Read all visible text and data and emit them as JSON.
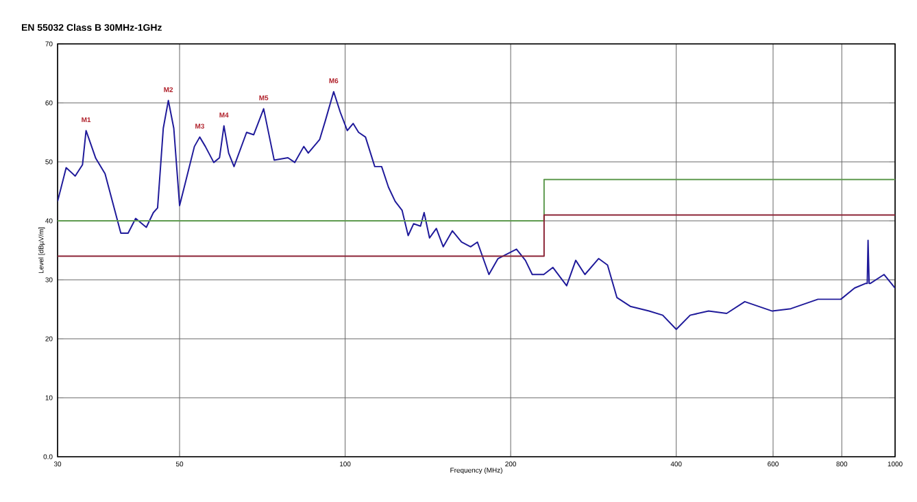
{
  "chart_data": {
    "type": "line",
    "title": "EN 55032 Class B 30MHz-1GHz",
    "xlabel": "Frequency (MHz)",
    "ylabel": "Level [dBµV/m]",
    "log": "x",
    "grid": true,
    "xlim": [
      30,
      1000
    ],
    "ylim": [
      0,
      70
    ],
    "xticks": [
      30,
      50,
      100,
      200,
      400,
      600,
      800,
      1000
    ],
    "yticks": [
      {
        "value": 0,
        "label": "0.0"
      },
      10,
      20,
      30,
      40,
      50,
      60,
      70
    ],
    "series": [
      {
        "color": "#1f1a9a",
        "x": [
          30,
          31.1,
          32.3,
          33.3,
          33.8,
          35.2,
          36.6,
          39.1,
          40.3,
          41.6,
          43.5,
          44.8,
          45.6,
          46.7,
          47.7,
          48.8,
          50,
          51.2,
          53.2,
          54.4,
          55.7,
          57.7,
          59.1,
          60.2,
          61.4,
          62.8,
          66.2,
          68.2,
          71.1,
          74.3,
          78.7,
          81,
          84.1,
          85.7,
          89.9,
          92,
          95.3,
          98,
          100.9,
          103.4,
          105.8,
          108.9,
          113.2,
          116.5,
          119.9,
          123.3,
          126.9,
          130.2,
          133.2,
          137.1,
          139.2,
          142.4,
          146.5,
          150.8,
          156.7,
          162.8,
          169.1,
          174,
          182.6,
          189.7,
          204.9,
          212.7,
          218.9,
          229.7,
          238.6,
          252.8,
          262.6,
          272.9,
          289,
          300,
          312,
          330,
          357,
          378,
          400,
          424,
          458,
          494,
          533,
          598,
          646,
          724,
          797,
          844,
          885,
          890,
          893,
          897,
          902,
          955,
          1000
        ],
        "values": [
          43.3,
          49.0,
          47.6,
          49.5,
          55.3,
          50.6,
          48,
          37.9,
          37.9,
          40.4,
          38.9,
          41.4,
          42.2,
          55.7,
          60.4,
          55.7,
          42.6,
          46.4,
          52.6,
          54.2,
          52.6,
          49.9,
          50.7,
          56.1,
          51.5,
          49.2,
          55.0,
          54.6,
          59.0,
          50.3,
          50.7,
          49.9,
          52.6,
          51.5,
          53.8,
          56.9,
          61.9,
          58.4,
          55.3,
          56.5,
          55.0,
          54.2,
          49.2,
          49.2,
          45.7,
          43.3,
          41.8,
          37.5,
          39.5,
          39.1,
          41.4,
          37.1,
          38.7,
          35.6,
          38.3,
          36.4,
          35.6,
          36.4,
          30.9,
          33.6,
          35.2,
          33.3,
          30.9,
          30.9,
          32.1,
          29.0,
          33.3,
          30.9,
          33.6,
          32.5,
          27.0,
          25.5,
          24.7,
          24.0,
          21.6,
          24.0,
          24.7,
          24.3,
          26.3,
          24.7,
          25.1,
          26.7,
          26.7,
          28.6,
          29.4,
          29.4,
          36.7,
          29.4,
          29.4,
          30.9,
          28.6
        ]
      },
      {
        "color": "#5e9a4e",
        "x": [
          30,
          230,
          230,
          1000
        ],
        "values": [
          40,
          40,
          47,
          47
        ]
      },
      {
        "color": "#8b2335",
        "x": [
          30,
          230,
          230,
          1000
        ],
        "values": [
          34,
          34,
          41,
          41
        ]
      }
    ],
    "annotations": [
      {
        "text": "M1",
        "x": 33.8,
        "y": 55.3
      },
      {
        "text": "M2",
        "x": 47.7,
        "y": 60.4
      },
      {
        "text": "M3",
        "x": 54.4,
        "y": 54.2
      },
      {
        "text": "M4",
        "x": 60.2,
        "y": 56.1
      },
      {
        "text": "M5",
        "x": 71.1,
        "y": 59.0
      },
      {
        "text": "M6",
        "x": 95.3,
        "y": 61.9
      }
    ]
  }
}
